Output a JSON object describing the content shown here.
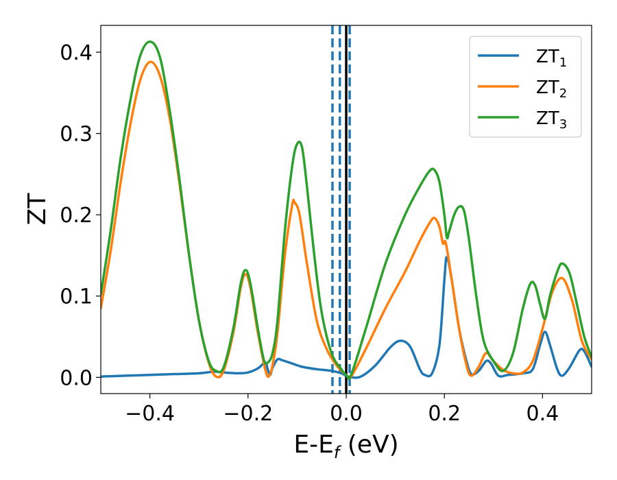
{
  "chart_data": {
    "type": "line",
    "xlabel": "E-E",
    "xlabel_sub": "f",
    "xlabel_unit": " (eV)",
    "ylabel": "ZT",
    "xlim": [
      -0.5,
      0.5
    ],
    "ylim": [
      -0.02,
      0.433
    ],
    "xticks": [
      -0.4,
      -0.2,
      0.0,
      0.2,
      0.4
    ],
    "xtick_labels": [
      "−0.4",
      "−0.2",
      "0.0",
      "0.2",
      "0.4"
    ],
    "yticks": [
      0.0,
      0.1,
      0.2,
      0.3,
      0.4
    ],
    "ytick_labels": [
      "0.0",
      "0.1",
      "0.2",
      "0.3",
      "0.4"
    ],
    "grid": false,
    "legend_position": "top-right",
    "vlines": [
      {
        "x": -0.028,
        "style": "dashed",
        "color": "#1f77b4"
      },
      {
        "x": -0.013,
        "style": "dashed",
        "color": "#1f77b4"
      },
      {
        "x": 0.007,
        "style": "dashed",
        "color": "#1f77b4"
      },
      {
        "x": 0.0,
        "style": "solid",
        "color": "#000000"
      }
    ],
    "series": [
      {
        "name": "ZT",
        "subscript": "1",
        "color": "#1f77b4",
        "points": [
          [
            -0.5,
            0.001
          ],
          [
            -0.45,
            0.002
          ],
          [
            -0.4,
            0.003
          ],
          [
            -0.35,
            0.004
          ],
          [
            -0.3,
            0.005
          ],
          [
            -0.27,
            0.007
          ],
          [
            -0.25,
            0.006
          ],
          [
            -0.22,
            0.005
          ],
          [
            -0.2,
            0.006
          ],
          [
            -0.18,
            0.011
          ],
          [
            -0.165,
            0.018
          ],
          [
            -0.16,
            0.01
          ],
          [
            -0.155,
            0.003
          ],
          [
            -0.15,
            0.012
          ],
          [
            -0.14,
            0.022
          ],
          [
            -0.13,
            0.021
          ],
          [
            -0.11,
            0.017
          ],
          [
            -0.09,
            0.013
          ],
          [
            -0.06,
            0.01
          ],
          [
            -0.03,
            0.008
          ],
          [
            -0.01,
            0.005
          ],
          [
            0.0,
            0.002
          ],
          [
            0.01,
            0.0
          ],
          [
            0.03,
            0.001
          ],
          [
            0.06,
            0.015
          ],
          [
            0.09,
            0.037
          ],
          [
            0.11,
            0.045
          ],
          [
            0.13,
            0.038
          ],
          [
            0.15,
            0.01
          ],
          [
            0.16,
            0.003
          ],
          [
            0.175,
            0.005
          ],
          [
            0.19,
            0.04
          ],
          [
            0.2,
            0.12
          ],
          [
            0.205,
            0.148
          ],
          [
            0.215,
            0.12
          ],
          [
            0.23,
            0.06
          ],
          [
            0.245,
            0.02
          ],
          [
            0.255,
            0.004
          ],
          [
            0.27,
            0.008
          ],
          [
            0.285,
            0.02
          ],
          [
            0.295,
            0.017
          ],
          [
            0.31,
            0.002
          ],
          [
            0.33,
            0.003
          ],
          [
            0.36,
            0.005
          ],
          [
            0.38,
            0.01
          ],
          [
            0.395,
            0.04
          ],
          [
            0.405,
            0.056
          ],
          [
            0.415,
            0.04
          ],
          [
            0.43,
            0.01
          ],
          [
            0.44,
            0.002
          ],
          [
            0.455,
            0.012
          ],
          [
            0.475,
            0.033
          ],
          [
            0.485,
            0.032
          ],
          [
            0.5,
            0.013
          ]
        ]
      },
      {
        "name": "ZT",
        "subscript": "2",
        "color": "#ff7f0e",
        "points": [
          [
            -0.5,
            0.085
          ],
          [
            -0.48,
            0.155
          ],
          [
            -0.46,
            0.238
          ],
          [
            -0.44,
            0.31
          ],
          [
            -0.42,
            0.365
          ],
          [
            -0.4,
            0.388
          ],
          [
            -0.38,
            0.372
          ],
          [
            -0.36,
            0.32
          ],
          [
            -0.34,
            0.24
          ],
          [
            -0.32,
            0.15
          ],
          [
            -0.3,
            0.07
          ],
          [
            -0.28,
            0.018
          ],
          [
            -0.265,
            0.001
          ],
          [
            -0.25,
            0.008
          ],
          [
            -0.23,
            0.055
          ],
          [
            -0.215,
            0.11
          ],
          [
            -0.205,
            0.127
          ],
          [
            -0.195,
            0.11
          ],
          [
            -0.18,
            0.055
          ],
          [
            -0.165,
            0.01
          ],
          [
            -0.158,
            0.001
          ],
          [
            -0.15,
            0.015
          ],
          [
            -0.14,
            0.055
          ],
          [
            -0.125,
            0.15
          ],
          [
            -0.11,
            0.212
          ],
          [
            -0.105,
            0.215
          ],
          [
            -0.095,
            0.2
          ],
          [
            -0.08,
            0.14
          ],
          [
            -0.06,
            0.07
          ],
          [
            -0.04,
            0.035
          ],
          [
            -0.02,
            0.015
          ],
          [
            0.0,
            0.003
          ],
          [
            0.01,
            0.001
          ],
          [
            0.04,
            0.035
          ],
          [
            0.08,
            0.085
          ],
          [
            0.12,
            0.13
          ],
          [
            0.15,
            0.168
          ],
          [
            0.17,
            0.19
          ],
          [
            0.18,
            0.196
          ],
          [
            0.19,
            0.185
          ],
          [
            0.197,
            0.165
          ],
          [
            0.203,
            0.165
          ],
          [
            0.215,
            0.12
          ],
          [
            0.23,
            0.06
          ],
          [
            0.245,
            0.015
          ],
          [
            0.255,
            0.002
          ],
          [
            0.27,
            0.013
          ],
          [
            0.285,
            0.03
          ],
          [
            0.3,
            0.02
          ],
          [
            0.32,
            0.009
          ],
          [
            0.34,
            0.005
          ],
          [
            0.36,
            0.006
          ],
          [
            0.38,
            0.02
          ],
          [
            0.4,
            0.06
          ],
          [
            0.42,
            0.105
          ],
          [
            0.44,
            0.122
          ],
          [
            0.46,
            0.095
          ],
          [
            0.48,
            0.045
          ],
          [
            0.5,
            0.022
          ]
        ]
      },
      {
        "name": "ZT",
        "subscript": "3",
        "color": "#2ca02c",
        "points": [
          [
            -0.5,
            0.102
          ],
          [
            -0.48,
            0.18
          ],
          [
            -0.46,
            0.268
          ],
          [
            -0.44,
            0.34
          ],
          [
            -0.42,
            0.395
          ],
          [
            -0.4,
            0.413
          ],
          [
            -0.38,
            0.395
          ],
          [
            -0.36,
            0.33
          ],
          [
            -0.34,
            0.245
          ],
          [
            -0.32,
            0.15
          ],
          [
            -0.3,
            0.07
          ],
          [
            -0.28,
            0.02
          ],
          [
            -0.265,
            0.008
          ],
          [
            -0.25,
            0.012
          ],
          [
            -0.23,
            0.06
          ],
          [
            -0.215,
            0.115
          ],
          [
            -0.205,
            0.132
          ],
          [
            -0.195,
            0.115
          ],
          [
            -0.18,
            0.06
          ],
          [
            -0.168,
            0.022
          ],
          [
            -0.16,
            0.018
          ],
          [
            -0.15,
            0.03
          ],
          [
            -0.14,
            0.07
          ],
          [
            -0.125,
            0.18
          ],
          [
            -0.11,
            0.26
          ],
          [
            -0.1,
            0.287
          ],
          [
            -0.09,
            0.283
          ],
          [
            -0.08,
            0.235
          ],
          [
            -0.065,
            0.15
          ],
          [
            -0.05,
            0.08
          ],
          [
            -0.03,
            0.03
          ],
          [
            -0.01,
            0.01
          ],
          [
            0.0,
            0.003
          ],
          [
            0.01,
            0.003
          ],
          [
            0.04,
            0.06
          ],
          [
            0.08,
            0.14
          ],
          [
            0.12,
            0.2
          ],
          [
            0.15,
            0.235
          ],
          [
            0.17,
            0.254
          ],
          [
            0.18,
            0.255
          ],
          [
            0.19,
            0.24
          ],
          [
            0.2,
            0.2
          ],
          [
            0.205,
            0.172
          ],
          [
            0.21,
            0.18
          ],
          [
            0.22,
            0.2
          ],
          [
            0.23,
            0.21
          ],
          [
            0.24,
            0.205
          ],
          [
            0.25,
            0.17
          ],
          [
            0.265,
            0.1
          ],
          [
            0.28,
            0.045
          ],
          [
            0.3,
            0.02
          ],
          [
            0.32,
            0.008
          ],
          [
            0.34,
            0.03
          ],
          [
            0.36,
            0.085
          ],
          [
            0.375,
            0.115
          ],
          [
            0.385,
            0.113
          ],
          [
            0.395,
            0.09
          ],
          [
            0.405,
            0.072
          ],
          [
            0.415,
            0.1
          ],
          [
            0.43,
            0.13
          ],
          [
            0.44,
            0.14
          ],
          [
            0.455,
            0.128
          ],
          [
            0.47,
            0.09
          ],
          [
            0.485,
            0.05
          ],
          [
            0.5,
            0.025
          ]
        ]
      }
    ]
  }
}
